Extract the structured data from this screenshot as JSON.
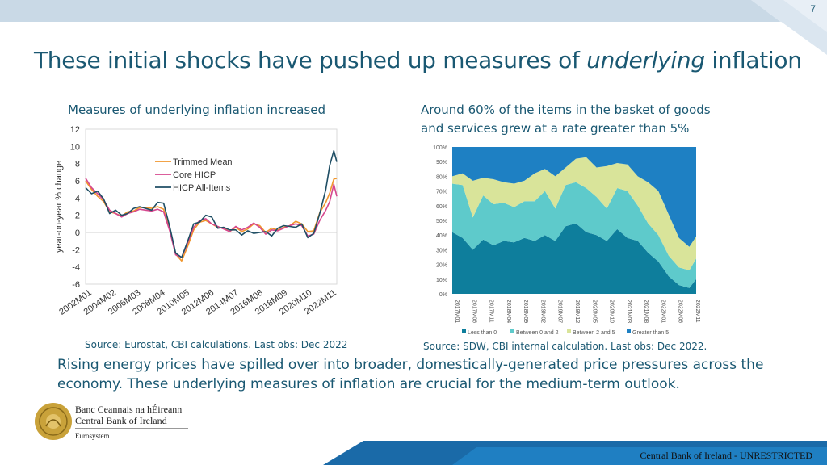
{
  "page_number": "7",
  "title_part1": "These initial shocks have pushed up measures of",
  "title_emphasis": "underlying",
  "title_part2": "inflation",
  "left_panel": {
    "subtitle": "Measures of underlying inflation increased",
    "source": "Source: Eurostat, CBI calculations. Last obs: Dec 2022"
  },
  "right_panel": {
    "subtitle_line1": "Around 60% of the items in the basket of goods",
    "subtitle_line2": "and services grew at a rate greater than 5%",
    "source": "Source: SDW, CBI internal calculation. Last obs: Dec 2022."
  },
  "body_line1": "Rising energy prices have spilled over into broader, domestically-generated price pressures across the",
  "body_line2": "economy.  These underlying measures of inflation are crucial for the medium-term outlook.",
  "logo": {
    "line1": "Banc Ceannais na hÉireann",
    "line2": "Central Bank of Ireland",
    "line3": "Eurosystem"
  },
  "footer": "Central Bank of Ireland - UNRESTRICTED",
  "colors": {
    "title": "#1a5872",
    "trimmed_mean": "#f0962d",
    "core_hicp": "#d6478e",
    "hicp_all": "#1f4e64",
    "less_than_0": "#0e7e9c",
    "between_0_2": "#5ecacb",
    "between_2_5": "#d9e49a",
    "greater_than_5": "#1e80c3"
  },
  "chart_data": [
    {
      "type": "line",
      "ylabel": "year-on-year % change",
      "ylim": [
        -6,
        12
      ],
      "y_ticks": [
        "12",
        "10",
        "8",
        "6",
        "4",
        "2",
        "0",
        "-2",
        "-4",
        "-6"
      ],
      "x_ticks": [
        "2002M01",
        "2004M02",
        "2006M03",
        "2008M04",
        "2010M05",
        "2012M06",
        "2014M07",
        "2016M08",
        "2018M09",
        "2020M10",
        "2022M11"
      ],
      "x_range": [
        2002.0,
        2022.917
      ],
      "legend_position": "upper-left",
      "series": [
        {
          "name": "Trimmed Mean",
          "x": [
            2002.0,
            2002.5,
            2003.0,
            2003.5,
            2004.0,
            2004.5,
            2005.0,
            2005.5,
            2006.0,
            2006.5,
            2007.0,
            2007.5,
            2008.0,
            2008.5,
            2009.0,
            2009.5,
            2010.0,
            2010.5,
            2011.0,
            2011.5,
            2012.0,
            2012.5,
            2013.0,
            2013.5,
            2014.0,
            2014.5,
            2015.0,
            2015.5,
            2016.0,
            2016.5,
            2017.0,
            2017.5,
            2018.0,
            2018.5,
            2019.0,
            2019.5,
            2020.0,
            2020.5,
            2021.0,
            2021.5,
            2022.0,
            2022.33,
            2022.67,
            2022.917
          ],
          "y": [
            6.0,
            5.0,
            4.2,
            3.6,
            2.4,
            2.2,
            1.9,
            2.4,
            2.5,
            2.9,
            2.9,
            2.8,
            3.0,
            2.7,
            0.5,
            -2.5,
            -3.3,
            -1.6,
            0.3,
            1.2,
            1.4,
            1.0,
            0.6,
            0.5,
            0.1,
            0.6,
            0.1,
            0.4,
            1.0,
            0.8,
            0.0,
            0.5,
            0.3,
            0.6,
            0.8,
            1.3,
            1.0,
            0.1,
            0.2,
            2.3,
            3.5,
            4.6,
            6.2,
            6.3
          ]
        },
        {
          "name": "Core HICP",
          "x": [
            2002.0,
            2002.5,
            2003.0,
            2003.5,
            2004.0,
            2004.5,
            2005.0,
            2005.5,
            2006.0,
            2006.5,
            2007.0,
            2007.5,
            2008.0,
            2008.5,
            2009.0,
            2009.5,
            2010.0,
            2010.5,
            2011.0,
            2011.5,
            2012.0,
            2012.5,
            2013.0,
            2013.5,
            2014.0,
            2014.5,
            2015.0,
            2015.5,
            2016.0,
            2016.5,
            2017.0,
            2017.5,
            2018.0,
            2018.5,
            2019.0,
            2019.5,
            2020.0,
            2020.5,
            2021.0,
            2021.5,
            2022.0,
            2022.33,
            2022.67,
            2022.917
          ],
          "y": [
            6.3,
            5.2,
            4.5,
            3.8,
            2.6,
            2.2,
            1.8,
            2.2,
            2.4,
            2.7,
            2.6,
            2.5,
            2.7,
            2.4,
            0.2,
            -2.6,
            -2.9,
            -1.2,
            0.6,
            1.4,
            1.6,
            1.0,
            0.7,
            0.4,
            0.1,
            0.7,
            0.3,
            0.6,
            1.1,
            0.6,
            -0.2,
            0.3,
            0.2,
            0.5,
            0.8,
            1.0,
            0.8,
            -0.4,
            -0.2,
            1.4,
            2.6,
            3.6,
            5.6,
            4.2
          ]
        },
        {
          "name": "HICP All-Items",
          "x": [
            2002.0,
            2002.5,
            2003.0,
            2003.5,
            2004.0,
            2004.5,
            2005.0,
            2005.5,
            2006.0,
            2006.5,
            2007.0,
            2007.5,
            2008.0,
            2008.5,
            2009.0,
            2009.5,
            2010.0,
            2010.5,
            2011.0,
            2011.5,
            2012.0,
            2012.5,
            2013.0,
            2013.5,
            2014.0,
            2014.5,
            2015.0,
            2015.5,
            2016.0,
            2016.5,
            2017.0,
            2017.5,
            2018.0,
            2018.5,
            2019.0,
            2019.5,
            2020.0,
            2020.5,
            2021.0,
            2021.5,
            2022.0,
            2022.33,
            2022.67,
            2022.917
          ],
          "y": [
            5.2,
            4.5,
            4.8,
            3.9,
            2.2,
            2.6,
            2.0,
            2.2,
            2.8,
            3.0,
            2.8,
            2.6,
            3.5,
            3.4,
            0.7,
            -2.4,
            -2.9,
            -1.0,
            1.0,
            1.2,
            2.0,
            1.8,
            0.5,
            0.6,
            0.3,
            0.3,
            -0.3,
            0.2,
            -0.1,
            0.0,
            0.1,
            -0.4,
            0.5,
            0.8,
            0.7,
            0.6,
            1.0,
            -0.6,
            -0.1,
            2.2,
            5.0,
            7.8,
            9.5,
            8.2
          ]
        }
      ]
    },
    {
      "type": "area",
      "stacked": true,
      "ylim": [
        0,
        100
      ],
      "y_ticks": [
        "100%",
        "90%",
        "80%",
        "70%",
        "60%",
        "50%",
        "40%",
        "30%",
        "20%",
        "10%",
        "0%"
      ],
      "x_ticks": [
        "2017M01",
        "2017M06",
        "2017M11",
        "2018M04",
        "2018M09",
        "2019M02",
        "2019M07",
        "2019M12",
        "2020M05",
        "2020M10",
        "2021M03",
        "2021M08",
        "2022M01",
        "2022M06",
        "2022M11"
      ],
      "legend_position": "bottom",
      "x": [
        2017.0,
        2017.25,
        2017.5,
        2017.75,
        2018.0,
        2018.25,
        2018.5,
        2018.75,
        2019.0,
        2019.25,
        2019.5,
        2019.75,
        2020.0,
        2020.25,
        2020.5,
        2020.75,
        2021.0,
        2021.25,
        2021.5,
        2021.75,
        2022.0,
        2022.25,
        2022.5,
        2022.75,
        2022.917
      ],
      "series": [
        {
          "name": "Less than 0",
          "values": [
            42,
            38,
            30,
            37,
            33,
            36,
            35,
            38,
            36,
            40,
            36,
            46,
            48,
            42,
            40,
            36,
            44,
            38,
            36,
            28,
            22,
            12,
            6,
            4,
            10
          ]
        },
        {
          "name": "Between 0 and 2",
          "values": [
            33,
            36,
            22,
            30,
            28,
            26,
            24,
            25,
            27,
            30,
            22,
            28,
            28,
            30,
            26,
            22,
            28,
            32,
            24,
            20,
            18,
            14,
            12,
            12,
            14
          ]
        },
        {
          "name": "Between 2 and 5",
          "values": [
            5,
            8,
            25,
            12,
            17,
            14,
            16,
            14,
            19,
            15,
            22,
            12,
            16,
            21,
            20,
            29,
            17,
            18,
            20,
            28,
            30,
            28,
            20,
            16,
            15
          ]
        },
        {
          "name": "Greater than 5",
          "values": [
            20,
            18,
            23,
            21,
            22,
            24,
            25,
            23,
            18,
            15,
            20,
            14,
            8,
            7,
            14,
            13,
            11,
            12,
            20,
            24,
            30,
            46,
            62,
            68,
            61
          ]
        }
      ]
    }
  ]
}
